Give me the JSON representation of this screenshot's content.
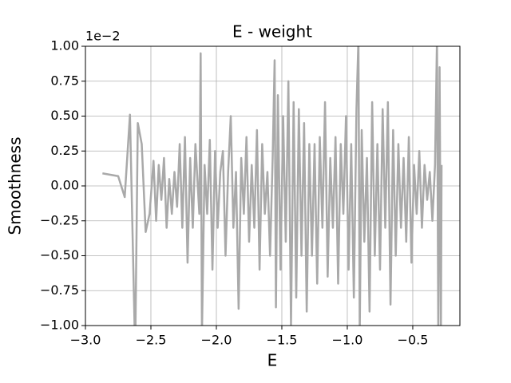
{
  "chart_data": {
    "type": "line",
    "title": "E - weight",
    "x_label": "E",
    "y_label": "Smoothness",
    "y_offset_label": "1e−2",
    "xlim": [
      -3.0,
      -0.14
    ],
    "ylim": [
      -1,
      1
    ],
    "xticks": [
      {
        "value": -3.0,
        "label": "−3.0"
      },
      {
        "value": -2.5,
        "label": "−2.5"
      },
      {
        "value": -2.0,
        "label": "−2.0"
      },
      {
        "value": -1.5,
        "label": "−1.5"
      },
      {
        "value": -1.0,
        "label": "−1.0"
      },
      {
        "value": -0.5,
        "label": "−0.5"
      }
    ],
    "yticks": [
      {
        "value": -1,
        "label": "−1.00"
      },
      {
        "value": -0.75,
        "label": "−0.75"
      },
      {
        "value": -0.5,
        "label": "−0.50"
      },
      {
        "value": -0.25,
        "label": "−0.25"
      },
      {
        "value": 0,
        "label": "0.00"
      },
      {
        "value": 0.25,
        "label": "0.25"
      },
      {
        "value": 0.5,
        "label": "0.50"
      },
      {
        "value": 0.75,
        "label": "0.75"
      },
      {
        "value": 1,
        "label": "1.00"
      }
    ],
    "grid": true,
    "series": [
      {
        "color": "#a9a9a9",
        "x": [
          -2.87,
          -2.75,
          -2.7,
          -2.66,
          -2.62,
          -2.6,
          -2.57,
          -2.54,
          -2.51,
          -2.48,
          -2.46,
          -2.44,
          -2.42,
          -2.4,
          -2.38,
          -2.36,
          -2.34,
          -2.32,
          -2.3,
          -2.28,
          -2.26,
          -2.24,
          -2.22,
          -2.2,
          -2.18,
          -2.16,
          -2.13,
          -2.12,
          -2.11,
          -2.09,
          -2.07,
          -2.05,
          -2.03,
          -2.01,
          -1.99,
          -1.97,
          -1.95,
          -1.93,
          -1.91,
          -1.89,
          -1.87,
          -1.85,
          -1.83,
          -1.81,
          -1.79,
          -1.77,
          -1.75,
          -1.73,
          -1.71,
          -1.69,
          -1.67,
          -1.65,
          -1.63,
          -1.61,
          -1.59,
          -1.57,
          -1.555,
          -1.545,
          -1.53,
          -1.51,
          -1.49,
          -1.47,
          -1.45,
          -1.43,
          -1.41,
          -1.39,
          -1.37,
          -1.35,
          -1.33,
          -1.31,
          -1.29,
          -1.27,
          -1.25,
          -1.23,
          -1.21,
          -1.19,
          -1.17,
          -1.15,
          -1.13,
          -1.11,
          -1.09,
          -1.07,
          -1.05,
          -1.03,
          -1.01,
          -0.99,
          -0.97,
          -0.95,
          -0.93,
          -0.915,
          -0.905,
          -0.89,
          -0.87,
          -0.85,
          -0.83,
          -0.81,
          -0.79,
          -0.77,
          -0.75,
          -0.73,
          -0.71,
          -0.69,
          -0.67,
          -0.65,
          -0.63,
          -0.61,
          -0.59,
          -0.57,
          -0.55,
          -0.53,
          -0.51,
          -0.49,
          -0.47,
          -0.45,
          -0.43,
          -0.41,
          -0.39,
          -0.37,
          -0.35,
          -0.33,
          -0.315,
          -0.305,
          -0.295,
          -0.285,
          -0.28
        ],
        "values": [
          0.09,
          0.07,
          -0.08,
          0.51,
          -1.2,
          0.45,
          0.3,
          -0.33,
          -0.2,
          0.18,
          -0.25,
          0.15,
          -0.1,
          0.2,
          -0.3,
          0.05,
          -0.2,
          0.1,
          -0.15,
          0.3,
          -0.3,
          0.35,
          -0.55,
          0.2,
          -0.3,
          0.3,
          -0.2,
          0.95,
          -1.05,
          0.15,
          -0.2,
          0.33,
          -0.6,
          0.25,
          -0.3,
          0.1,
          0.25,
          -0.5,
          0.1,
          0.5,
          -0.3,
          0.1,
          -0.88,
          0.2,
          -0.2,
          0.35,
          -0.4,
          0.15,
          -0.3,
          0.4,
          -0.6,
          0.3,
          -0.2,
          0.1,
          -0.5,
          0.2,
          0.9,
          -0.87,
          0.65,
          -0.6,
          0.5,
          -0.4,
          0.75,
          -1.0,
          0.6,
          -0.8,
          0.55,
          -0.5,
          0.45,
          -0.9,
          0.3,
          -0.5,
          0.3,
          -0.7,
          0.35,
          -0.3,
          0.6,
          -0.65,
          0.2,
          -0.3,
          0.35,
          -0.7,
          0.3,
          -0.2,
          0.5,
          -0.6,
          0.3,
          -0.8,
          0.55,
          1.05,
          -1.05,
          0.4,
          -0.4,
          0.2,
          -0.9,
          0.6,
          -0.5,
          0.3,
          -0.6,
          0.55,
          -0.3,
          0.6,
          -0.85,
          0.4,
          -0.5,
          0.3,
          -0.3,
          0.2,
          -0.4,
          0.35,
          -0.55,
          0.15,
          -0.2,
          0.25,
          -0.3,
          0.15,
          -0.1,
          0.1,
          -0.25,
          0.15,
          1.05,
          -1.05,
          0.85,
          -1.05,
          0.15
        ]
      }
    ]
  }
}
